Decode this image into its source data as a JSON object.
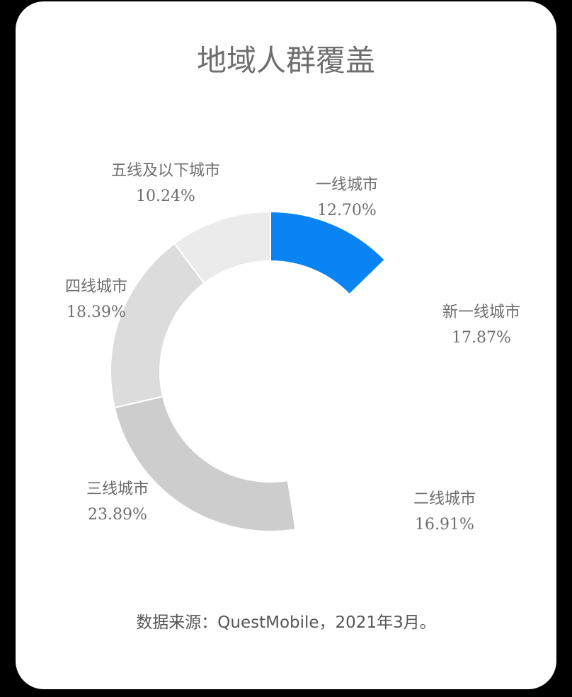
{
  "chart_data": {
    "type": "pie",
    "style": "donut",
    "title": "地域人群覆盖",
    "categories": [
      "一线城市",
      "新一线城市",
      "二线城市",
      "三线城市",
      "四线城市",
      "五线及以下城市"
    ],
    "values": [
      12.7,
      17.87,
      16.91,
      23.89,
      18.39,
      10.24
    ],
    "labels": [
      "12.70%",
      "17.87%",
      "16.91%",
      "23.89%",
      "18.39%",
      "10.24%"
    ],
    "colors": [
      "#0a84f2",
      "#ffffff",
      "#ffffff",
      "#cdcdcd",
      "#dcdcdc",
      "#ebebeb"
    ],
    "start": "top",
    "direction": "clockwise",
    "source": "数据来源：QuestMobile，2021年3月。"
  }
}
